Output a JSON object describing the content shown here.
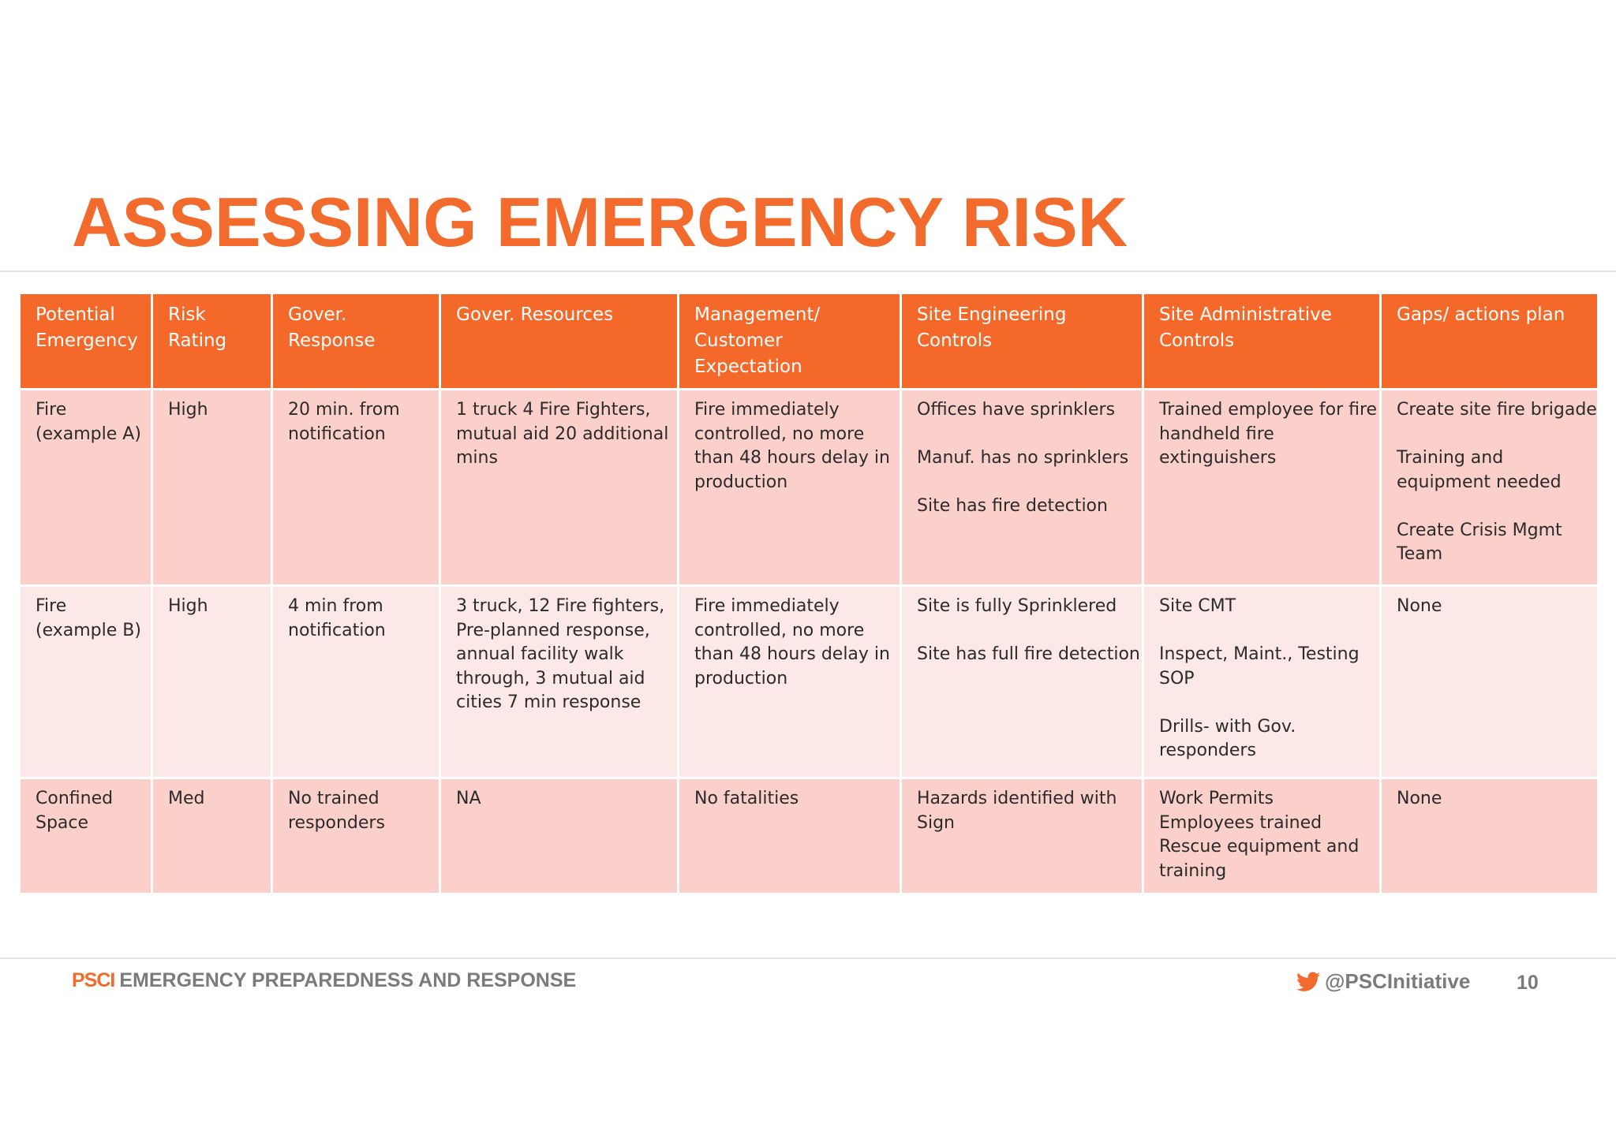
{
  "title": "ASSESSING EMERGENCY RISK",
  "table": {
    "header": [
      [
        "Potential",
        "Emergency"
      ],
      [
        "Risk",
        "Rating"
      ],
      [
        "Gover.",
        "Response"
      ],
      [
        "Gover. Resources"
      ],
      [
        "Management/",
        "Customer",
        "Expectation"
      ],
      [
        "Site Engineering",
        "Controls"
      ],
      [
        "Site Administrative",
        "Controls"
      ],
      [
        "Gaps/ actions plan"
      ]
    ],
    "rows": [
      [
        [
          [
            "Fire",
            "(example A)"
          ]
        ],
        [
          [
            "High"
          ]
        ],
        [
          [
            "20 min. from",
            "notification"
          ]
        ],
        [
          [
            "1 truck 4 Fire Fighters,",
            "mutual aid 20 additional",
            "mins"
          ]
        ],
        [
          [
            "Fire immediately",
            "controlled, no more",
            "than 48 hours delay in",
            "production"
          ]
        ],
        [
          [
            "Offices have sprinklers"
          ],
          [
            "Manuf. has no sprinklers"
          ],
          [
            "Site has fire detection"
          ]
        ],
        [
          [
            "Trained employee for fire",
            "handheld fire",
            "extinguishers"
          ]
        ],
        [
          [
            "Create site fire brigade"
          ],
          [
            "Training and",
            "equipment needed"
          ],
          [
            "Create Crisis Mgmt",
            "Team"
          ]
        ]
      ],
      [
        [
          [
            "Fire",
            "(example B)"
          ]
        ],
        [
          [
            "High"
          ]
        ],
        [
          [
            "4 min from",
            "notification"
          ]
        ],
        [
          [
            "3 truck, 12 Fire fighters,",
            "Pre-planned response,",
            "annual facility walk",
            "through,  3 mutual aid",
            "cities 7 min response"
          ]
        ],
        [
          [
            "Fire immediately",
            "controlled, no more",
            "than 48 hours delay in",
            "production"
          ]
        ],
        [
          [
            "Site is fully Sprinklered"
          ],
          [
            "Site has full fire detection"
          ]
        ],
        [
          [
            "Site CMT"
          ],
          [
            "Inspect, Maint., Testing",
            "SOP"
          ],
          [
            "Drills- with Gov.",
            "responders"
          ]
        ],
        [
          [
            "None"
          ]
        ]
      ],
      [
        [
          [
            "Confined",
            "Space"
          ]
        ],
        [
          [
            "Med"
          ]
        ],
        [
          [
            "No trained",
            "responders"
          ]
        ],
        [
          [
            "NA"
          ]
        ],
        [
          [
            "No fatalities"
          ]
        ],
        [
          [
            "Hazards identified with",
            "Sign"
          ]
        ],
        [
          [
            "Work Permits",
            "Employees trained",
            "Rescue equipment and",
            "training"
          ]
        ],
        [
          [
            "None"
          ]
        ]
      ]
    ]
  },
  "footer": {
    "brand": "PSCI",
    "program": "EMERGENCY PREPAREDNESS AND RESPONSE",
    "handle": "@PSCInitiative",
    "page": 10
  }
}
